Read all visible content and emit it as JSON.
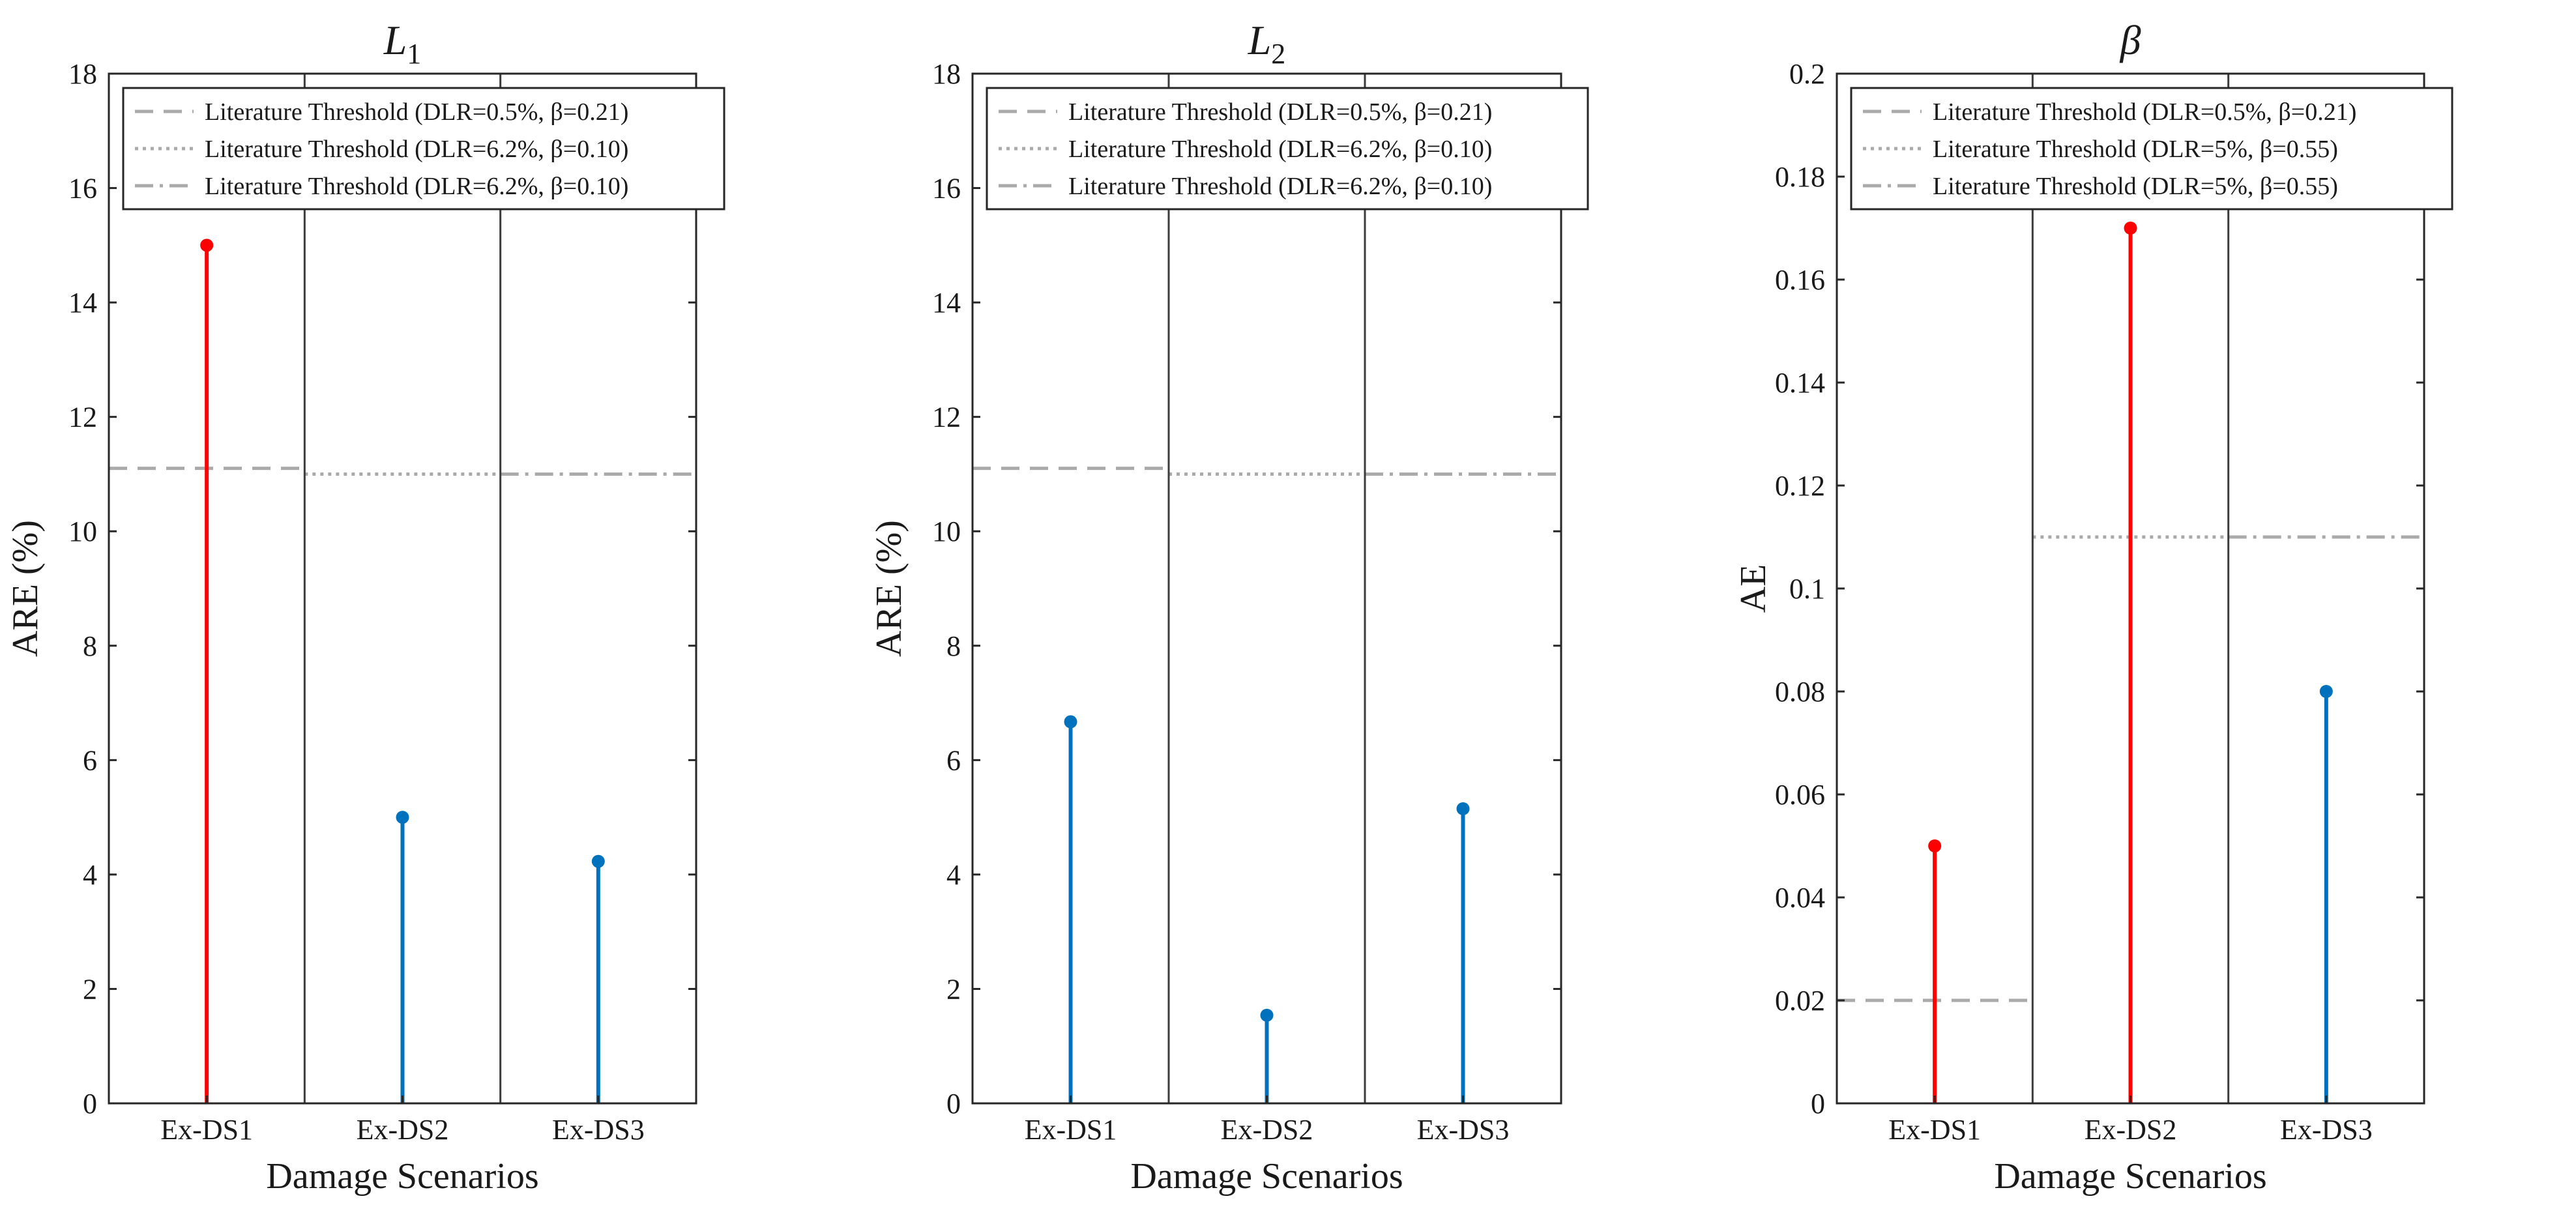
{
  "colors": {
    "highlight": "#ff0000",
    "normal": "#0072bd",
    "threshold": "#aaaaaa",
    "divider": "#3c3c3c",
    "axis": "#262626"
  },
  "chart_data": [
    {
      "type": "stem",
      "title": "L",
      "title_sub": "1",
      "xlabel": "Damage Scenarios",
      "ylabel": "ARE (%)",
      "ylim": [
        0,
        18
      ],
      "yticks": [
        "0",
        "2",
        "4",
        "6",
        "8",
        "10",
        "12",
        "14",
        "16",
        "18"
      ],
      "categories": [
        "Ex-DS1",
        "Ex-DS2",
        "Ex-DS3"
      ],
      "values": [
        15.0,
        5.0,
        4.23
      ],
      "highlight": [
        true,
        false,
        false
      ],
      "thresholds": [
        {
          "label": "Literature Threshold (DLR=0.5%, β=0.21)",
          "style": "dashed",
          "value": 11.1,
          "segment": 0
        },
        {
          "label": "Literature Threshold (DLR=6.2%, β=0.10)",
          "style": "dotted",
          "value": 11.0,
          "segment": 1
        },
        {
          "label": "Literature Threshold (DLR=6.2%, β=0.10)",
          "style": "dashdot",
          "value": 11.0,
          "segment": 2
        }
      ]
    },
    {
      "type": "stem",
      "title": "L",
      "title_sub": "2",
      "xlabel": "Damage Scenarios",
      "ylabel": "ARE (%)",
      "ylim": [
        0,
        18
      ],
      "yticks": [
        "0",
        "2",
        "4",
        "6",
        "8",
        "10",
        "12",
        "14",
        "16",
        "18"
      ],
      "categories": [
        "Ex-DS1",
        "Ex-DS2",
        "Ex-DS3"
      ],
      "values": [
        6.67,
        1.54,
        5.15
      ],
      "highlight": [
        false,
        false,
        false
      ],
      "thresholds": [
        {
          "label": "Literature Threshold (DLR=0.5%, β=0.21)",
          "style": "dashed",
          "value": 11.1,
          "segment": 0
        },
        {
          "label": "Literature Threshold (DLR=6.2%, β=0.10)",
          "style": "dotted",
          "value": 11.0,
          "segment": 1
        },
        {
          "label": "Literature Threshold (DLR=6.2%, β=0.10)",
          "style": "dashdot",
          "value": 11.0,
          "segment": 2
        }
      ]
    },
    {
      "type": "stem",
      "title": "β",
      "title_sub": "",
      "xlabel": "Damage Scenarios",
      "ylabel": "AE",
      "ylim": [
        0,
        0.2
      ],
      "yticks": [
        "0",
        "0.02",
        "0.04",
        "0.06",
        "0.08",
        "0.1",
        "0.12",
        "0.14",
        "0.16",
        "0.18",
        "0.2"
      ],
      "categories": [
        "Ex-DS1",
        "Ex-DS2",
        "Ex-DS3"
      ],
      "values": [
        0.05,
        0.17,
        0.08
      ],
      "highlight": [
        true,
        true,
        false
      ],
      "thresholds": [
        {
          "label": "Literature Threshold (DLR=0.5%, β=0.21)",
          "style": "dashed",
          "value": 0.02,
          "segment": 0
        },
        {
          "label": "Literature Threshold (DLR=5%, β=0.55)",
          "style": "dotted",
          "value": 0.11,
          "segment": 1
        },
        {
          "label": "Literature Threshold (DLR=5%, β=0.55)",
          "style": "dashdot",
          "value": 0.11,
          "segment": 2
        }
      ]
    }
  ]
}
